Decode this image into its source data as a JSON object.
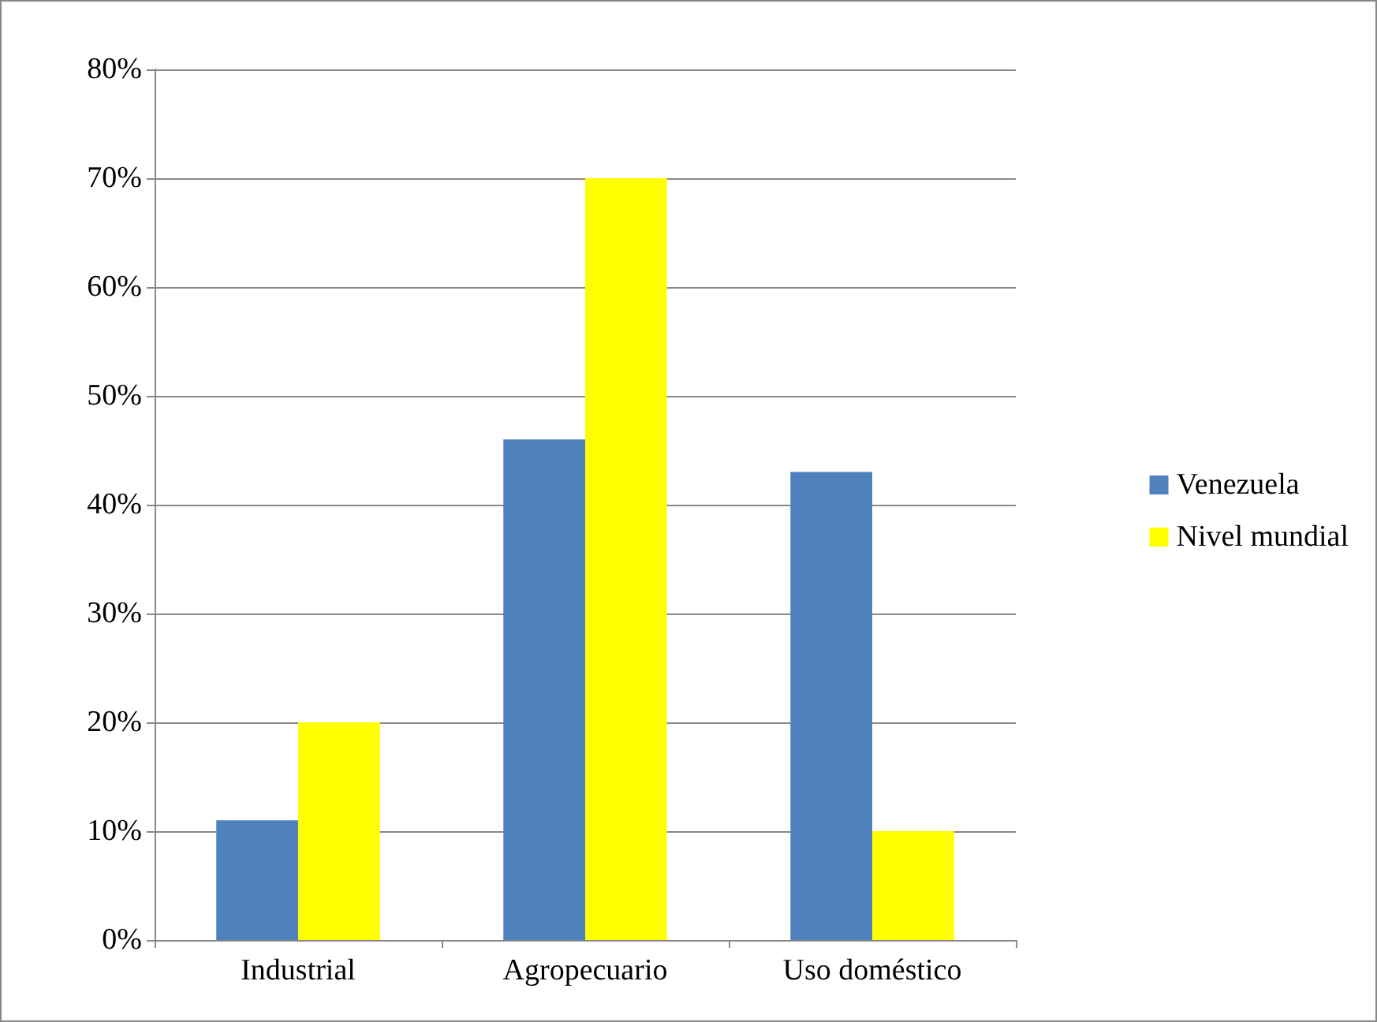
{
  "chart_data": {
    "type": "bar",
    "categories": [
      "Industrial",
      "Agropecuario",
      "Uso doméstico"
    ],
    "series": [
      {
        "name": "Venezuela",
        "color": "#4f81bd",
        "values": [
          11,
          46,
          43
        ]
      },
      {
        "name": "Nivel mundial",
        "color": "#ffff00",
        "values": [
          20,
          70,
          10
        ]
      }
    ],
    "ylim": [
      0,
      80
    ],
    "yticks": [
      {
        "value": 0,
        "label": "0%"
      },
      {
        "value": 10,
        "label": "10%"
      },
      {
        "value": 20,
        "label": "20%"
      },
      {
        "value": 30,
        "label": "30%"
      },
      {
        "value": 40,
        "label": "40%"
      },
      {
        "value": 50,
        "label": "50%"
      },
      {
        "value": 60,
        "label": "60%"
      },
      {
        "value": 70,
        "label": "70%"
      },
      {
        "value": 80,
        "label": "80%"
      }
    ],
    "grid": "y",
    "legend": "right"
  }
}
